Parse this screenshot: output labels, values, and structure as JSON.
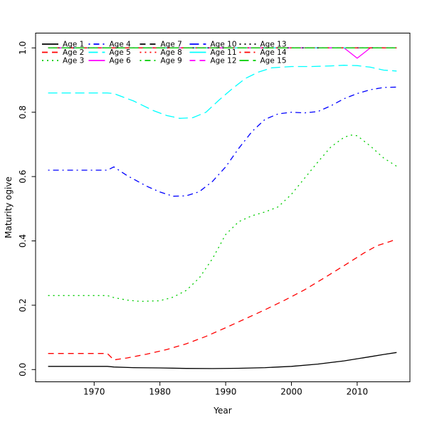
{
  "chart_data": {
    "type": "line",
    "title": "",
    "xlabel": "Year",
    "ylabel": "Maturity ogive",
    "x_ticks": [
      1970,
      1980,
      1990,
      2000,
      2010
    ],
    "y_ticks": [
      "0.0",
      "0.2",
      "0.4",
      "0.6",
      "0.8",
      "1.0"
    ],
    "xlim": [
      1961.1,
      2018.0
    ],
    "ylim": [
      -0.04,
      1.05
    ],
    "x_range_data": [
      1963,
      2016
    ],
    "grid": false,
    "legend_position": "top",
    "legend_columns": 5,
    "legend_rows": 3,
    "axis_color": "#000000",
    "background_color": "#ffffff",
    "series": [
      {
        "name": "Age 1",
        "color": "#000000",
        "lty": "solid",
        "x": [
          1963,
          1970,
          1972,
          1973,
          1976,
          1980,
          1984,
          1988,
          1992,
          1996,
          2000,
          2004,
          2008,
          2012,
          2014,
          2016
        ],
        "y": [
          0.01,
          0.01,
          0.01,
          0.008,
          0.006,
          0.005,
          0.0035,
          0.003,
          0.004,
          0.006,
          0.01,
          0.017,
          0.027,
          0.04,
          0.047,
          0.053
        ]
      },
      {
        "name": "Age 2",
        "color": "#ff0000",
        "lty": "dashed",
        "x": [
          1963,
          1970,
          1972,
          1973,
          1975,
          1978,
          1981,
          1984,
          1987,
          1990,
          1993,
          1996,
          1999,
          2002,
          2005,
          2008,
          2011,
          2013,
          2015,
          2016
        ],
        "y": [
          0.05,
          0.05,
          0.05,
          0.03,
          0.036,
          0.048,
          0.062,
          0.08,
          0.103,
          0.13,
          0.158,
          0.186,
          0.216,
          0.248,
          0.285,
          0.323,
          0.362,
          0.385,
          0.398,
          0.406
        ]
      },
      {
        "name": "Age 3",
        "color": "#00cd00",
        "lty": "dotted",
        "x": [
          1963,
          1970,
          1972,
          1973,
          1975,
          1977,
          1980,
          1982,
          1984,
          1986,
          1988,
          1990,
          1992,
          1994,
          1996,
          1998,
          2000,
          2002,
          2004,
          2006,
          2008,
          2009,
          2010,
          2012,
          2014,
          2016
        ],
        "y": [
          0.23,
          0.23,
          0.23,
          0.224,
          0.216,
          0.212,
          0.214,
          0.225,
          0.246,
          0.285,
          0.345,
          0.42,
          0.46,
          0.478,
          0.49,
          0.506,
          0.545,
          0.595,
          0.645,
          0.692,
          0.722,
          0.729,
          0.727,
          0.695,
          0.658,
          0.632
        ]
      },
      {
        "name": "Age 4",
        "color": "#0000ff",
        "lty": "dotdash",
        "x": [
          1963,
          1970,
          1972,
          1973,
          1975,
          1978,
          1980,
          1982,
          1984,
          1986,
          1988,
          1990,
          1992,
          1994,
          1996,
          1998,
          2000,
          2002,
          2004,
          2006,
          2008,
          2010,
          2012,
          2014,
          2016
        ],
        "y": [
          0.62,
          0.62,
          0.62,
          0.63,
          0.603,
          0.57,
          0.552,
          0.539,
          0.54,
          0.553,
          0.585,
          0.63,
          0.688,
          0.74,
          0.778,
          0.795,
          0.8,
          0.798,
          0.802,
          0.82,
          0.842,
          0.858,
          0.87,
          0.877,
          0.878
        ]
      },
      {
        "name": "Age 5",
        "color": "#00ffff",
        "lty": "longdash",
        "x": [
          1963,
          1970,
          1972,
          1973,
          1976,
          1979,
          1981,
          1983,
          1985,
          1987,
          1989,
          1991,
          1993,
          1995,
          1997,
          2000,
          2003,
          2006,
          2008,
          2010,
          2012,
          2014,
          2016
        ],
        "y": [
          0.86,
          0.86,
          0.86,
          0.858,
          0.835,
          0.805,
          0.79,
          0.781,
          0.783,
          0.8,
          0.838,
          0.873,
          0.905,
          0.925,
          0.938,
          0.942,
          0.942,
          0.944,
          0.946,
          0.945,
          0.94,
          0.931,
          0.928
        ]
      },
      {
        "name": "Age 6",
        "color": "#ff00ff",
        "lty": "solid",
        "x": [
          1963,
          2008,
          2010,
          2012,
          2016
        ],
        "y": [
          1.0,
          1.0,
          0.968,
          1.0,
          1.0
        ]
      },
      {
        "name": "Age 7",
        "color": "#000000",
        "lty": "dashed",
        "x": [
          1963,
          2016
        ],
        "y": [
          1.0,
          1.0
        ]
      },
      {
        "name": "Age 8",
        "color": "#ff0000",
        "lty": "dotted",
        "x": [
          1963,
          2016
        ],
        "y": [
          1.0,
          1.0
        ]
      },
      {
        "name": "Age 9",
        "color": "#00cd00",
        "lty": "dotdash",
        "x": [
          1963,
          2016
        ],
        "y": [
          1.0,
          1.0
        ]
      },
      {
        "name": "Age 10",
        "color": "#0000ff",
        "lty": "longdash",
        "x": [
          1963,
          2016
        ],
        "y": [
          1.0,
          1.0
        ]
      },
      {
        "name": "Age 11",
        "color": "#00ffff",
        "lty": "solid",
        "x": [
          1963,
          2016
        ],
        "y": [
          1.0,
          1.0
        ]
      },
      {
        "name": "Age 12",
        "color": "#ff00ff",
        "lty": "dashed",
        "x": [
          1963,
          2016
        ],
        "y": [
          1.0,
          1.0
        ]
      },
      {
        "name": "Age 13",
        "color": "#000000",
        "lty": "dotted",
        "x": [
          1963,
          2016
        ],
        "y": [
          1.0,
          1.0
        ]
      },
      {
        "name": "Age 14",
        "color": "#ff0000",
        "lty": "dotdash",
        "x": [
          1963,
          2016
        ],
        "y": [
          1.0,
          1.0
        ]
      },
      {
        "name": "Age 15",
        "color": "#00cd00",
        "lty": "longdash",
        "x": [
          1963,
          2016
        ],
        "y": [
          1.0,
          1.0
        ]
      }
    ]
  }
}
